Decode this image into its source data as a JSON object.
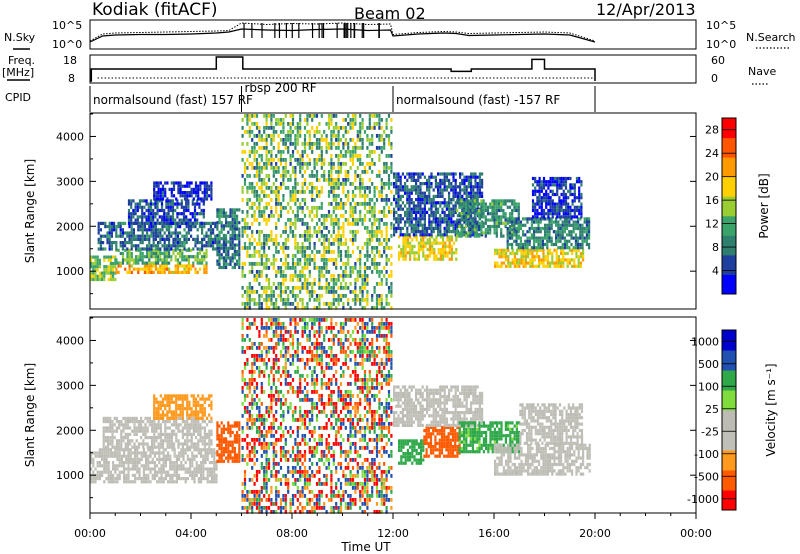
{
  "header": {
    "station": "Kodiak (fitACF)",
    "beam": "Beam 02",
    "date": "12/Apr/2013"
  },
  "left_labels": {
    "nsky": "N.Sky",
    "freq_line1": "Freq.",
    "freq_line2": "[MHz]",
    "cpid": "CPID"
  },
  "right_labels": {
    "nsearch": "N.Search",
    "nave": "Nave"
  },
  "cpid_segments": [
    {
      "label": "normalsound (fast) 157 RF",
      "start_hour": 0.0,
      "end_hour": 6.0
    },
    {
      "label": "rbsp 200 RF",
      "start_hour": 6.0,
      "end_hour": 12.0
    },
    {
      "label": "normalsound (fast) -157 RF",
      "start_hour": 12.0,
      "end_hour": 20.0
    }
  ],
  "colors": {
    "power": [
      "#0000ff",
      "#1f3f9e",
      "#2f7f6f",
      "#3aa36a",
      "#9acd32",
      "#ffd000",
      "#ff9900",
      "#ff5500",
      "#ff0000"
    ],
    "velocity": [
      "#ff0000",
      "#ff5a00",
      "#ff9a1f",
      "#c0c0b8",
      "#bcbcb4",
      "#7fdc3c",
      "#2fa84a",
      "#2050b0",
      "#0000cc"
    ]
  },
  "chart_data": [
    {
      "type": "line",
      "name": "noise-panel",
      "left_axis_label": "N.Sky",
      "right_axis_label": "N.Search",
      "yticks_left": [
        "10^5",
        "10^0"
      ],
      "yticks_right": [
        "10^5",
        "10^0"
      ],
      "x": [
        0,
        0.5,
        1,
        2,
        3,
        4,
        5,
        5.5,
        6,
        7,
        8,
        9,
        10,
        11,
        11.9,
        12,
        13,
        14,
        14.5,
        15,
        16,
        17,
        18,
        19,
        20
      ],
      "series": [
        {
          "values": [
            1.2,
            2.6,
            2.8,
            2.9,
            3.0,
            3.1,
            3.2,
            3.3,
            4.8,
            4.5,
            4.7,
            4.6,
            4.8,
            4.5,
            4.6,
            2.5,
            2.9,
            3.1,
            3.0,
            2.7,
            2.8,
            2.9,
            3.0,
            2.8,
            1.2
          ]
        },
        {
          "values": [
            1.0,
            2.2,
            2.4,
            2.5,
            2.5,
            2.6,
            2.8,
            3.0,
            3.6,
            3.4,
            3.3,
            3.5,
            3.6,
            3.3,
            3.4,
            2.2,
            2.6,
            2.8,
            2.7,
            2.3,
            2.4,
            2.5,
            2.6,
            2.4,
            1.0
          ]
        }
      ]
    },
    {
      "type": "line",
      "name": "frequency-panel",
      "left_axis_label": "Freq. [MHz]",
      "right_axis_label": "Nave",
      "yticks_left": [
        "18",
        "8"
      ],
      "yticks_right": [
        "60",
        "0"
      ],
      "x": [
        0,
        0.05,
        4.9,
        5.0,
        6.0,
        6.05,
        14.2,
        14.3,
        15.0,
        15.1,
        17.4,
        17.5,
        17.9,
        18.0,
        20.0
      ],
      "series": [
        {
          "values": [
            8,
            13,
            13,
            18,
            18,
            13,
            13,
            12,
            12,
            13,
            13,
            17,
            17,
            13,
            8
          ]
        }
      ]
    },
    {
      "type": "heatmap",
      "name": "power-panel",
      "ylabel": "Slant Range [km]",
      "yticks": [
        1000,
        2000,
        3000,
        4000
      ],
      "ylim": [
        180,
        4500
      ],
      "xlim": [
        0,
        24
      ],
      "colorbar_label": "Power [dB]",
      "colorbar_ticks": [
        4,
        8,
        12,
        16,
        20,
        24,
        28
      ],
      "colorbar_range": [
        0,
        30
      ],
      "regions": [
        {
          "t0": 0.0,
          "t1": 1.0,
          "r0": 850,
          "r1": 1350,
          "value": 14
        },
        {
          "t0": 1.0,
          "t1": 4.6,
          "r0": 950,
          "r1": 1150,
          "value": 20
        },
        {
          "t0": 1.0,
          "t1": 4.6,
          "r0": 1150,
          "r1": 1500,
          "value": 12
        },
        {
          "t0": 0.3,
          "t1": 5.0,
          "r0": 1500,
          "r1": 2100,
          "value": 7
        },
        {
          "t0": 1.5,
          "t1": 4.5,
          "r0": 2100,
          "r1": 2600,
          "value": 5
        },
        {
          "t0": 2.5,
          "t1": 4.8,
          "r0": 2600,
          "r1": 3000,
          "value": 3
        },
        {
          "t0": 5.0,
          "t1": 5.9,
          "r0": 1100,
          "r1": 2400,
          "value": 8
        },
        {
          "t0": 12.2,
          "t1": 14.5,
          "r0": 1300,
          "r1": 1800,
          "value": 18
        },
        {
          "t0": 12.0,
          "t1": 15.5,
          "r0": 1800,
          "r1": 3200,
          "value": 6
        },
        {
          "t0": 14.5,
          "t1": 17.0,
          "r0": 1800,
          "r1": 2600,
          "value": 10
        },
        {
          "t0": 16.0,
          "t1": 19.5,
          "r0": 1100,
          "r1": 1500,
          "value": 18
        },
        {
          "t0": 16.5,
          "t1": 19.8,
          "r0": 1500,
          "r1": 2200,
          "value": 9
        },
        {
          "t0": 17.5,
          "t1": 19.5,
          "r0": 2200,
          "r1": 3100,
          "value": 4
        }
      ],
      "noise_band": {
        "t0": 6.0,
        "t1": 11.9,
        "r0": 180,
        "r1": 4500,
        "value": 16
      }
    },
    {
      "type": "heatmap",
      "name": "velocity-panel",
      "ylabel": "Slant Range [km]",
      "yticks": [
        1000,
        2000,
        3000,
        4000
      ],
      "ylim": [
        180,
        4500
      ],
      "xlim": [
        0,
        24
      ],
      "xticks": [
        "00:00",
        "04:00",
        "08:00",
        "12:00",
        "16:00",
        "20:00",
        "00:00"
      ],
      "xlabel": "Time UT",
      "colorbar_label": "Velocity [m s⁻¹]",
      "colorbar_ticks": [
        "1000",
        "500",
        "100",
        "25",
        "-25",
        "-100",
        "-500",
        "-1000"
      ],
      "regions": [
        {
          "t0": 0.0,
          "t1": 5.0,
          "r0": 850,
          "r1": 1600,
          "value": 0
        },
        {
          "t0": 0.5,
          "t1": 4.8,
          "r0": 1600,
          "r1": 2300,
          "value": 0
        },
        {
          "t0": 2.5,
          "t1": 4.8,
          "r0": 2300,
          "r1": 2800,
          "value": -60
        },
        {
          "t0": 5.0,
          "t1": 5.9,
          "r0": 1300,
          "r1": 2200,
          "value": -300
        },
        {
          "t0": 12.2,
          "t1": 13.2,
          "r0": 1300,
          "r1": 1800,
          "value": 200
        },
        {
          "t0": 13.2,
          "t1": 14.6,
          "r0": 1400,
          "r1": 2100,
          "value": -300
        },
        {
          "t0": 12.0,
          "t1": 15.5,
          "r0": 2100,
          "r1": 3000,
          "value": 0
        },
        {
          "t0": 14.6,
          "t1": 17.0,
          "r0": 1500,
          "r1": 2200,
          "value": 150
        },
        {
          "t0": 16.0,
          "t1": 19.8,
          "r0": 1000,
          "r1": 1700,
          "value": 0
        },
        {
          "t0": 17.0,
          "t1": 19.5,
          "r0": 1700,
          "r1": 2600,
          "value": 0
        }
      ],
      "noise_band": {
        "t0": 6.0,
        "t1": 11.9,
        "r0": 180,
        "r1": 4500,
        "value": 0
      }
    }
  ]
}
